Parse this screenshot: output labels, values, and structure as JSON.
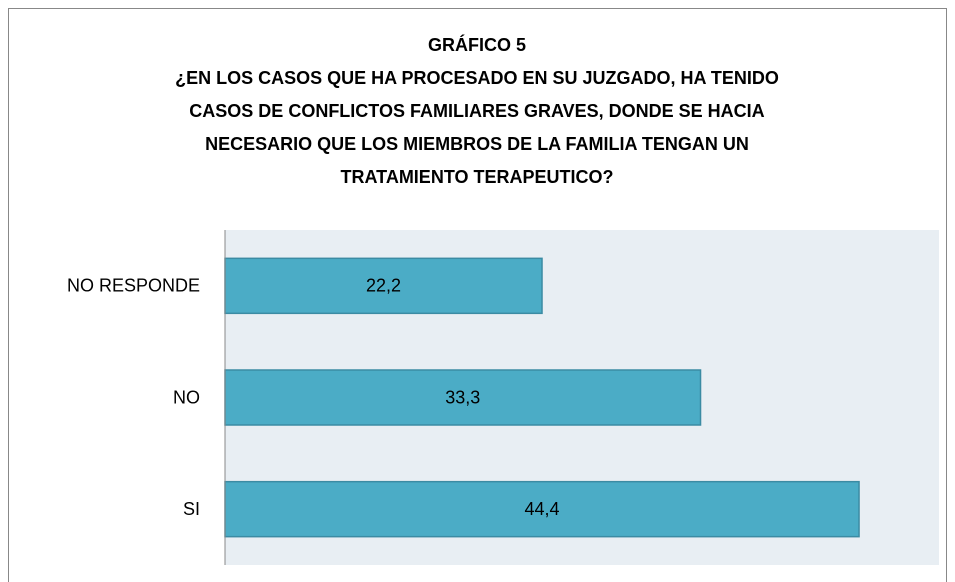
{
  "chart_data": {
    "type": "barh",
    "title": "GRÁFICO 5",
    "subtitle": [
      "¿EN LOS CASOS QUE HA PROCESADO EN SU JUZGADO, HA TENIDO",
      "CASOS DE CONFLICTOS FAMILIARES GRAVES, DONDE SE HACIA",
      "NECESARIO QUE LOS MIEMBROS DE LA FAMILIA TENGAN UN",
      "TRATAMIENTO TERAPEUTICO?"
    ],
    "categories": [
      "NO RESPONDE",
      "NO",
      "SI"
    ],
    "values": [
      22.2,
      33.3,
      44.4
    ],
    "value_labels": [
      "22,2",
      "33,3",
      "44,4"
    ],
    "color": "#4bacc6",
    "xlim": [
      0,
      50
    ]
  }
}
